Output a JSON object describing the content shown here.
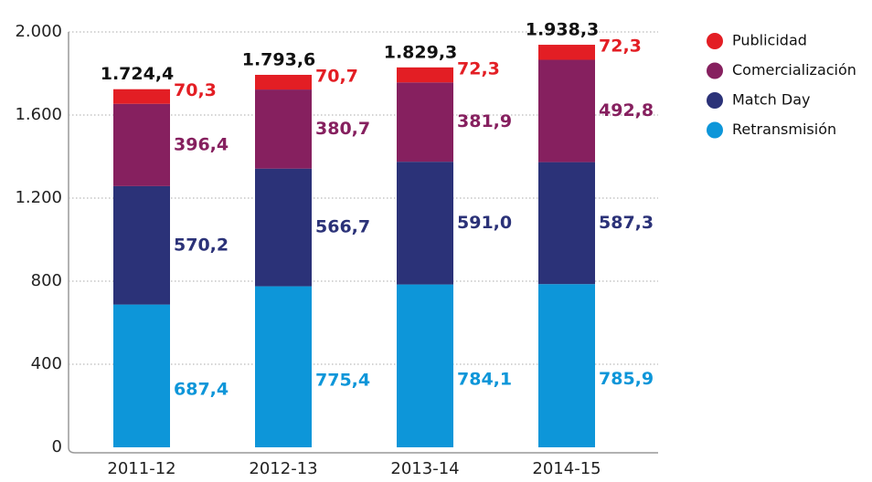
{
  "chart_data": {
    "type": "bar",
    "stacked": true,
    "categories": [
      "2011-12",
      "2012-13",
      "2013-14",
      "2014-15"
    ],
    "series": [
      {
        "name": "Retransmisión",
        "color": "#0d96d9",
        "values": [
          687.4,
          775.4,
          784.1,
          785.9
        ],
        "value_labels": [
          "687,4",
          "775,4",
          "784,1",
          "785,9"
        ]
      },
      {
        "name": "Match Day",
        "color": "#2b3278",
        "values": [
          570.2,
          566.7,
          591.0,
          587.3
        ],
        "value_labels": [
          "570,2",
          "566,7",
          "591,0",
          "587,3"
        ]
      },
      {
        "name": "Comercialización",
        "color": "#86205f",
        "values": [
          396.4,
          380.7,
          381.9,
          492.8
        ],
        "value_labels": [
          "396,4",
          "380,7",
          "381,9",
          "492,8"
        ]
      },
      {
        "name": "Publicidad",
        "color": "#e31e24",
        "values": [
          70.3,
          70.7,
          72.3,
          72.3
        ],
        "value_labels": [
          "70,3",
          "70,7",
          "72,3",
          "72,3"
        ]
      }
    ],
    "totals": [
      1724.4,
      1793.6,
      1829.3,
      1938.3
    ],
    "total_labels": [
      "1.724,4",
      "1.793,6",
      "1.829,3",
      "1.938,3"
    ],
    "ylim": [
      0,
      2000
    ],
    "yticks": [
      0,
      400,
      800,
      {
        "value": 1200,
        "label": "1.200"
      },
      {
        "value": 1600,
        "label": "1.600"
      },
      {
        "value": 2000,
        "label": "2.000"
      }
    ],
    "grid": true,
    "legend": "upper right"
  }
}
